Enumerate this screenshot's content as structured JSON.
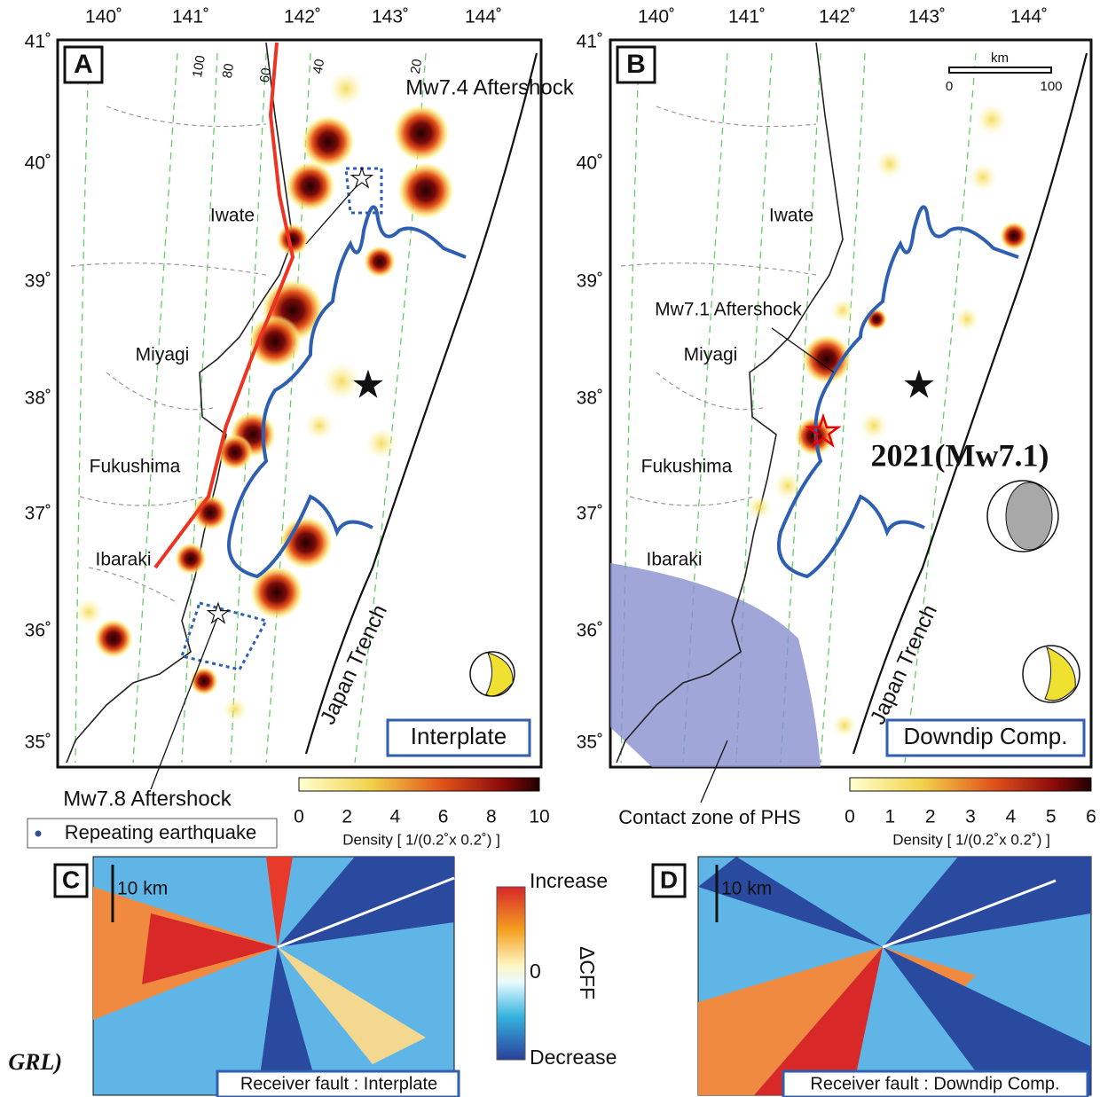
{
  "panel_a": {
    "label": "A",
    "lon_labels": [
      "140˚",
      "141˚",
      "142˚",
      "143˚",
      "144˚"
    ],
    "lat_labels": [
      "41˚",
      "40˚",
      "39˚",
      "38˚",
      "37˚",
      "36˚",
      "35˚"
    ],
    "depth_labels": [
      "100",
      "80",
      "60",
      "40",
      "20"
    ],
    "places": [
      "Iwate",
      "Miyagi",
      "Fukushima",
      "Ibaraki"
    ],
    "aftershock_north": "Mw7.4 Aftershock",
    "aftershock_south": "Mw7.8 Aftershock",
    "trench": "Japan Trench",
    "box": "Interplate",
    "legend": "Repeating earthquake",
    "colorbar": {
      "ticks": [
        0,
        2,
        4,
        6,
        8,
        10
      ],
      "label": "Density [ 1/(0.2˚x 0.2˚) ]"
    }
  },
  "panel_b": {
    "label": "B",
    "lon_labels": [
      "140˚",
      "141˚",
      "142˚",
      "143˚",
      "144˚"
    ],
    "lat_labels": [
      "41˚",
      "40˚",
      "39˚",
      "38˚",
      "37˚",
      "36˚",
      "35˚"
    ],
    "places": [
      "Iwate",
      "Miyagi",
      "Fukushima",
      "Ibaraki"
    ],
    "scale": {
      "unit": "km",
      "ticks": [
        0,
        100
      ]
    },
    "aftershock": "Mw7.1 Aftershock",
    "event": "2021(Mw7.1)",
    "trench": "Japan Trench",
    "box": "Downdip Comp.",
    "phs": "Contact zone of PHS",
    "colorbar": {
      "ticks": [
        0,
        1,
        2,
        3,
        4,
        5,
        6
      ],
      "label": "Density [ 1/(0.2˚x 0.2˚) ]"
    }
  },
  "panel_c": {
    "label": "C",
    "scale": "10 km",
    "box": "Receiver fault : Interplate"
  },
  "panel_d": {
    "label": "D",
    "scale": "10 km",
    "box": "Receiver fault : Downdip Comp."
  },
  "cff_colorbar": {
    "top": "Increase",
    "mid": "0",
    "title": "ΔCFF",
    "bottom": "Decrease"
  },
  "side_text": "GRL)"
}
